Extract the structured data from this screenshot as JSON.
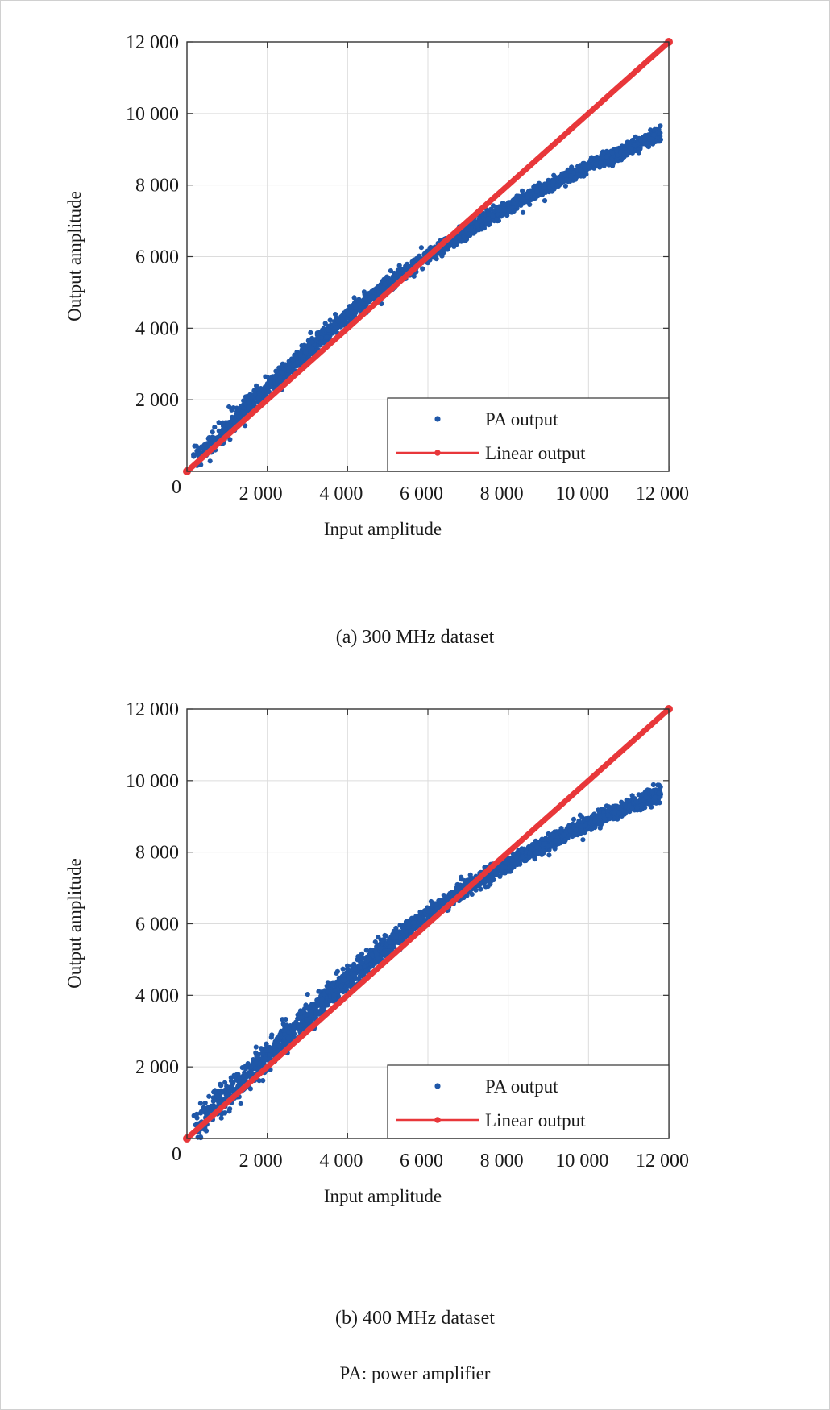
{
  "figure": {
    "caption_a": "(a) 300 MHz dataset",
    "caption_b": "(b) 400 MHz dataset",
    "footnote": "PA: power amplifier"
  },
  "colors": {
    "pa_output": "#1f57a8",
    "linear_output": "#e8373a",
    "grid": "#dcdcdc",
    "axis": "#333333"
  },
  "chart_data": [
    {
      "type": "scatter",
      "title": "",
      "xlabel": "Input amplitude",
      "ylabel": "Output amplitude",
      "xlim": [
        0,
        12000
      ],
      "ylim": [
        0,
        12000
      ],
      "x_ticks": [
        2000,
        4000,
        6000,
        8000,
        10000,
        12000
      ],
      "x_tick_labels": [
        "2 000",
        "4 000",
        "6 000",
        "8 000",
        "10 000",
        "12 000"
      ],
      "y_ticks": [
        2000,
        4000,
        6000,
        8000,
        10000,
        12000
      ],
      "y_tick_labels": [
        "2 000",
        "4 000",
        "6 000",
        "8 000",
        "10 000",
        "12 000"
      ],
      "origin_label": "0",
      "grid": true,
      "legend_position": "bottom-right",
      "series": [
        {
          "name": "PA output",
          "kind": "points",
          "x": [
            300,
            500,
            1000,
            1500,
            2000,
            2500,
            3000,
            3500,
            4000,
            4500,
            5000,
            5500,
            6000,
            6500,
            7000,
            7500,
            8000,
            8500,
            9000,
            9500,
            10000,
            10500,
            11000,
            11500,
            11800
          ],
          "y": [
            420,
            650,
            1220,
            1780,
            2320,
            2850,
            3380,
            3880,
            4350,
            4800,
            5230,
            5640,
            6020,
            6380,
            6730,
            7060,
            7380,
            7680,
            7970,
            8250,
            8520,
            8780,
            9030,
            9280,
            9450
          ],
          "spread": [
            300,
            300,
            280,
            280,
            260,
            250,
            240,
            220,
            210,
            200,
            190,
            180,
            170,
            170,
            160,
            160,
            160,
            160,
            160,
            160,
            160,
            160,
            170,
            180,
            180
          ]
        },
        {
          "name": "Linear output",
          "kind": "line",
          "x": [
            0,
            12000
          ],
          "y": [
            0,
            12000
          ]
        }
      ]
    },
    {
      "type": "scatter",
      "title": "",
      "xlabel": "Input amplitude",
      "ylabel": "Output amplitude",
      "xlim": [
        0,
        12000
      ],
      "ylim": [
        0,
        12000
      ],
      "x_ticks": [
        2000,
        4000,
        6000,
        8000,
        10000,
        12000
      ],
      "x_tick_labels": [
        "2 000",
        "4 000",
        "6 000",
        "8 000",
        "10 000",
        "12 000"
      ],
      "y_ticks": [
        2000,
        4000,
        6000,
        8000,
        10000,
        12000
      ],
      "y_tick_labels": [
        "2 000",
        "4 000",
        "6 000",
        "8 000",
        "10 000",
        "12 000"
      ],
      "origin_label": "0",
      "grid": true,
      "legend_position": "bottom-right",
      "series": [
        {
          "name": "PA output",
          "kind": "points",
          "x": [
            300,
            500,
            1000,
            1500,
            2000,
            2500,
            3000,
            3500,
            4000,
            4500,
            5000,
            5500,
            6000,
            6500,
            7000,
            7500,
            8000,
            8500,
            9000,
            9500,
            10000,
            10500,
            11000,
            11500,
            11800
          ],
          "y": [
            420,
            650,
            1200,
            1760,
            2320,
            2870,
            3410,
            3940,
            4450,
            4940,
            5410,
            5850,
            6270,
            6660,
            7020,
            7360,
            7680,
            7990,
            8270,
            8540,
            8790,
            9040,
            9280,
            9500,
            9620
          ],
          "spread": [
            420,
            420,
            400,
            390,
            380,
            360,
            340,
            320,
            300,
            290,
            270,
            250,
            230,
            220,
            210,
            200,
            190,
            190,
            190,
            190,
            200,
            200,
            210,
            220,
            230
          ]
        },
        {
          "name": "Linear output",
          "kind": "line",
          "x": [
            0,
            12000
          ],
          "y": [
            0,
            12000
          ]
        }
      ]
    }
  ]
}
